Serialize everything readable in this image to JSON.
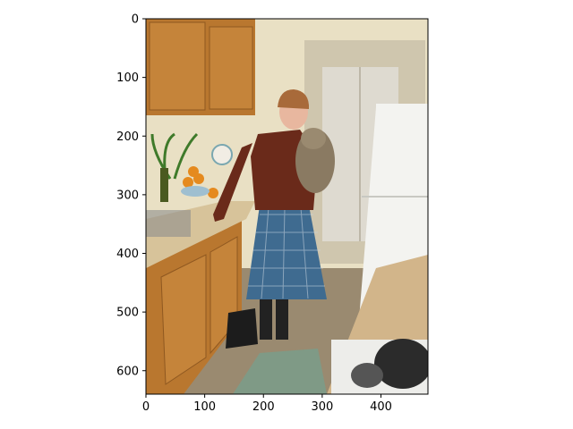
{
  "figure": {
    "image_description_none": "",
    "axes": {
      "x_ticks": [
        "0",
        "100",
        "200",
        "300",
        "400"
      ],
      "y_ticks": [
        "0",
        "100",
        "200",
        "300",
        "400",
        "500",
        "600"
      ],
      "x_tick_values": [
        0,
        100,
        200,
        300,
        400
      ],
      "y_tick_values": [
        0,
        100,
        200,
        300,
        400,
        500,
        600
      ],
      "xlim": [
        0,
        480
      ],
      "ylim": [
        640,
        0
      ]
    }
  },
  "colors": {
    "wall": "#e9e0c4",
    "cabinet": "#b9772f",
    "cabinet_dark": "#8f5820",
    "counter": "#d7c39a",
    "floor": "#9a8a70",
    "sweater": "#6a2a1a",
    "skirt": "#3f6b90",
    "fridge": "#f3f3f0",
    "mat": "#7f9a86",
    "door": "#dedad0"
  },
  "chart_data": {
    "type": "image",
    "x_ticks": [
      0,
      100,
      200,
      300,
      400
    ],
    "y_ticks": [
      0,
      100,
      200,
      300,
      400,
      500,
      600
    ],
    "xlim": [
      0,
      480
    ],
    "ylim": [
      640,
      0
    ],
    "title": "",
    "xlabel": "",
    "ylabel": ""
  }
}
